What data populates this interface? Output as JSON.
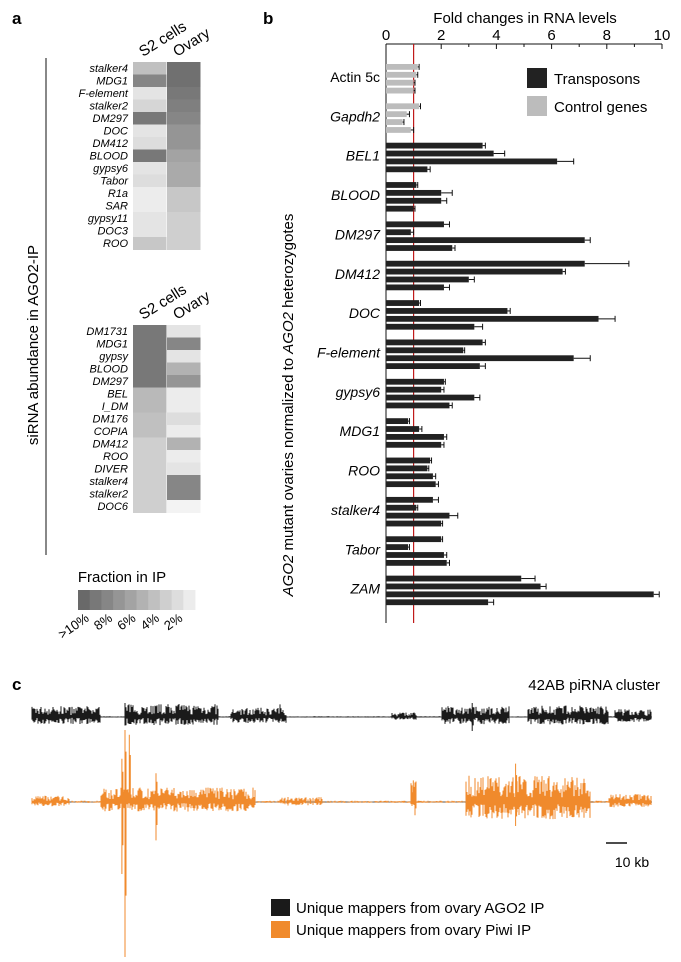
{
  "panels": {
    "a": "a",
    "b": "b",
    "c": "c"
  },
  "chart_data": [
    {
      "type": "heatmap",
      "panel": "a",
      "ylabel": "siRNA abundance in AGO2-IP",
      "columns": [
        "S2 cells",
        "Ovary"
      ],
      "colorbar": {
        "title": "Fraction in IP",
        "tick_labels": [
          ">10%",
          "8%",
          "6%",
          "4%",
          "2%"
        ],
        "levels": [
          10,
          9,
          8,
          7,
          6,
          5,
          4,
          3,
          2,
          1
        ]
      },
      "blocks": [
        {
          "rows": [
            "stalker4",
            "MDG1",
            "F-element",
            "stalker2",
            "DM297",
            "DOC",
            "DM412",
            "BLOOD",
            "gypsy6",
            "Tabor",
            "R1a",
            "SAR",
            "gypsy11",
            "DOC3",
            "ROO"
          ],
          "values": [
            [
              4,
              9.5
            ],
            [
              8,
              9.5
            ],
            [
              1.5,
              9
            ],
            [
              2.5,
              8.5
            ],
            [
              9,
              8
            ],
            [
              1.5,
              7
            ],
            [
              2,
              7
            ],
            [
              9,
              6
            ],
            [
              1.5,
              5.5
            ],
            [
              2,
              5.5
            ],
            [
              1,
              3.5
            ],
            [
              1,
              3.5
            ],
            [
              1.5,
              3
            ],
            [
              1.5,
              3
            ],
            [
              3.5,
              3
            ]
          ]
        },
        {
          "rows": [
            "DM1731",
            "MDG1",
            "gypsy",
            "BLOOD",
            "DM297",
            "BEL",
            "I_DM",
            "DM176",
            "COPIA",
            "DM412",
            "ROO",
            "DIVER",
            "stalker4",
            "stalker2",
            "DOC6"
          ],
          "values": [
            [
              9,
              1.5
            ],
            [
              9,
              8
            ],
            [
              9,
              1.5
            ],
            [
              9,
              5
            ],
            [
              9,
              7
            ],
            [
              4.5,
              1
            ],
            [
              4.5,
              1
            ],
            [
              4,
              2
            ],
            [
              4,
              1
            ],
            [
              3,
              5
            ],
            [
              3,
              1
            ],
            [
              3,
              1.5
            ],
            [
              3,
              8
            ],
            [
              3,
              8
            ],
            [
              3,
              0.5
            ]
          ]
        }
      ]
    },
    {
      "type": "bar",
      "panel": "b",
      "orientation": "horizontal",
      "xlabel": "Fold changes in RNA levels",
      "ylabel_parts": [
        "AGO2",
        " mutant ovaries normalized to ",
        "AGO2",
        " heterozygotes"
      ],
      "xlim": [
        0,
        10
      ],
      "x_ticks": [
        "0",
        "2",
        "4",
        "6",
        "8",
        "10"
      ],
      "reference_line": 1,
      "legend": [
        "Transposons",
        "Control genes"
      ],
      "colors": {
        "Transposons": "#222222",
        "Control genes": "#bcbcbc",
        "reference": "#c01a1a"
      },
      "groups": [
        {
          "name": "Actin 5c",
          "kind": "Control genes",
          "italic": false,
          "values": [
            1.15,
            1.1,
            1.0,
            1.0
          ],
          "errors": [
            0.05,
            0.05,
            0.05,
            0.05
          ]
        },
        {
          "name": "Gapdh2",
          "kind": "Control genes",
          "italic": true,
          "values": [
            1.2,
            0.75,
            0.6,
            0.9
          ],
          "errors": [
            0.05,
            0.1,
            0.05,
            0.1
          ]
        },
        {
          "name": "BEL1",
          "kind": "Transposons",
          "italic": true,
          "values": [
            3.5,
            3.9,
            6.2,
            1.5
          ],
          "errors": [
            0.1,
            0.4,
            0.6,
            0.1
          ]
        },
        {
          "name": "BLOOD",
          "kind": "Transposons",
          "italic": true,
          "values": [
            1.1,
            2.0,
            2.0,
            1.0
          ],
          "errors": [
            0.05,
            0.4,
            0.2,
            0.05
          ]
        },
        {
          "name": "DM297",
          "kind": "Transposons",
          "italic": true,
          "values": [
            2.1,
            0.9,
            7.2,
            2.4
          ],
          "errors": [
            0.2,
            0.1,
            0.2,
            0.1
          ]
        },
        {
          "name": "DM412",
          "kind": "Transposons",
          "italic": true,
          "values": [
            7.2,
            6.4,
            3.0,
            2.1
          ],
          "errors": [
            1.6,
            0.1,
            0.2,
            0.2
          ]
        },
        {
          "name": "DOC",
          "kind": "Transposons",
          "italic": true,
          "values": [
            1.2,
            4.4,
            7.7,
            3.2
          ],
          "errors": [
            0.05,
            0.1,
            0.6,
            0.3
          ]
        },
        {
          "name": "F-element",
          "kind": "Transposons",
          "italic": true,
          "values": [
            3.5,
            2.8,
            6.8,
            3.4
          ],
          "errors": [
            0.1,
            0.05,
            0.6,
            0.2
          ]
        },
        {
          "name": "gypsy6",
          "kind": "Transposons",
          "italic": true,
          "values": [
            2.1,
            2.0,
            3.2,
            2.3
          ],
          "errors": [
            0.05,
            0.1,
            0.2,
            0.1
          ]
        },
        {
          "name": "MDG1",
          "kind": "Transposons",
          "italic": true,
          "values": [
            0.8,
            1.2,
            2.1,
            2.0
          ],
          "errors": [
            0.05,
            0.1,
            0.1,
            0.1
          ]
        },
        {
          "name": "ROO",
          "kind": "Transposons",
          "italic": true,
          "values": [
            1.6,
            1.5,
            1.7,
            1.8
          ],
          "errors": [
            0.05,
            0.05,
            0.1,
            0.1
          ]
        },
        {
          "name": "stalker4",
          "kind": "Transposons",
          "italic": true,
          "values": [
            1.7,
            1.1,
            2.3,
            2.0
          ],
          "errors": [
            0.2,
            0.05,
            0.3,
            0.05
          ]
        },
        {
          "name": "Tabor",
          "kind": "Transposons",
          "italic": true,
          "values": [
            2.0,
            0.8,
            2.1,
            2.2
          ],
          "errors": [
            0.05,
            0.05,
            0.1,
            0.1
          ]
        },
        {
          "name": "ZAM",
          "kind": "Transposons",
          "italic": true,
          "values": [
            4.9,
            5.6,
            9.7,
            3.7
          ],
          "errors": [
            0.5,
            0.2,
            0.2,
            0.2
          ]
        }
      ]
    },
    {
      "type": "area",
      "panel": "c",
      "title": "42AB piRNA cluster",
      "scale_bar_label": "10 kb",
      "colors": {
        "AGO2": "#1a1a1a",
        "Piwi": "#f08a2c"
      },
      "legend": [
        "Unique mappers from ovary AGO2 IP",
        "Unique mappers from ovary Piwi IP"
      ],
      "tracks": [
        {
          "name": "Unique mappers from ovary AGO2 IP",
          "color": "#1a1a1a",
          "regions": [
            [
              0.0,
              0.11,
              0.7
            ],
            [
              0.15,
              0.3,
              0.85
            ],
            [
              0.32,
              0.41,
              0.6
            ],
            [
              0.58,
              0.62,
              0.3
            ],
            [
              0.66,
              0.77,
              0.7
            ],
            [
              0.8,
              0.93,
              0.75
            ],
            [
              0.94,
              1.0,
              0.5
            ]
          ],
          "spikes": [
            [
              0.71,
              1.0,
              -1.0
            ],
            [
              0.15,
              1.0,
              0.0
            ],
            [
              0.4,
              0.9,
              0.0
            ]
          ]
        },
        {
          "name": "Unique mappers from ovary Piwi IP",
          "color": "#f08a2c",
          "regions": [
            [
              0.0,
              0.06,
              0.25
            ],
            [
              0.11,
              0.36,
              0.55
            ],
            [
              0.4,
              0.47,
              0.2
            ],
            [
              0.61,
              0.62,
              0.9
            ],
            [
              0.7,
              0.9,
              1.0
            ],
            [
              0.93,
              1.0,
              0.3
            ]
          ],
          "spikes": [
            [
              0.15,
              3.0,
              -6.5
            ],
            [
              0.157,
              2.8,
              0.0
            ],
            [
              0.145,
              1.8,
              -3.0
            ],
            [
              0.2,
              1.2,
              -1.6
            ],
            [
              0.78,
              1.6,
              -1.0
            ],
            [
              0.615,
              0.9,
              0.0
            ]
          ]
        }
      ]
    }
  ]
}
